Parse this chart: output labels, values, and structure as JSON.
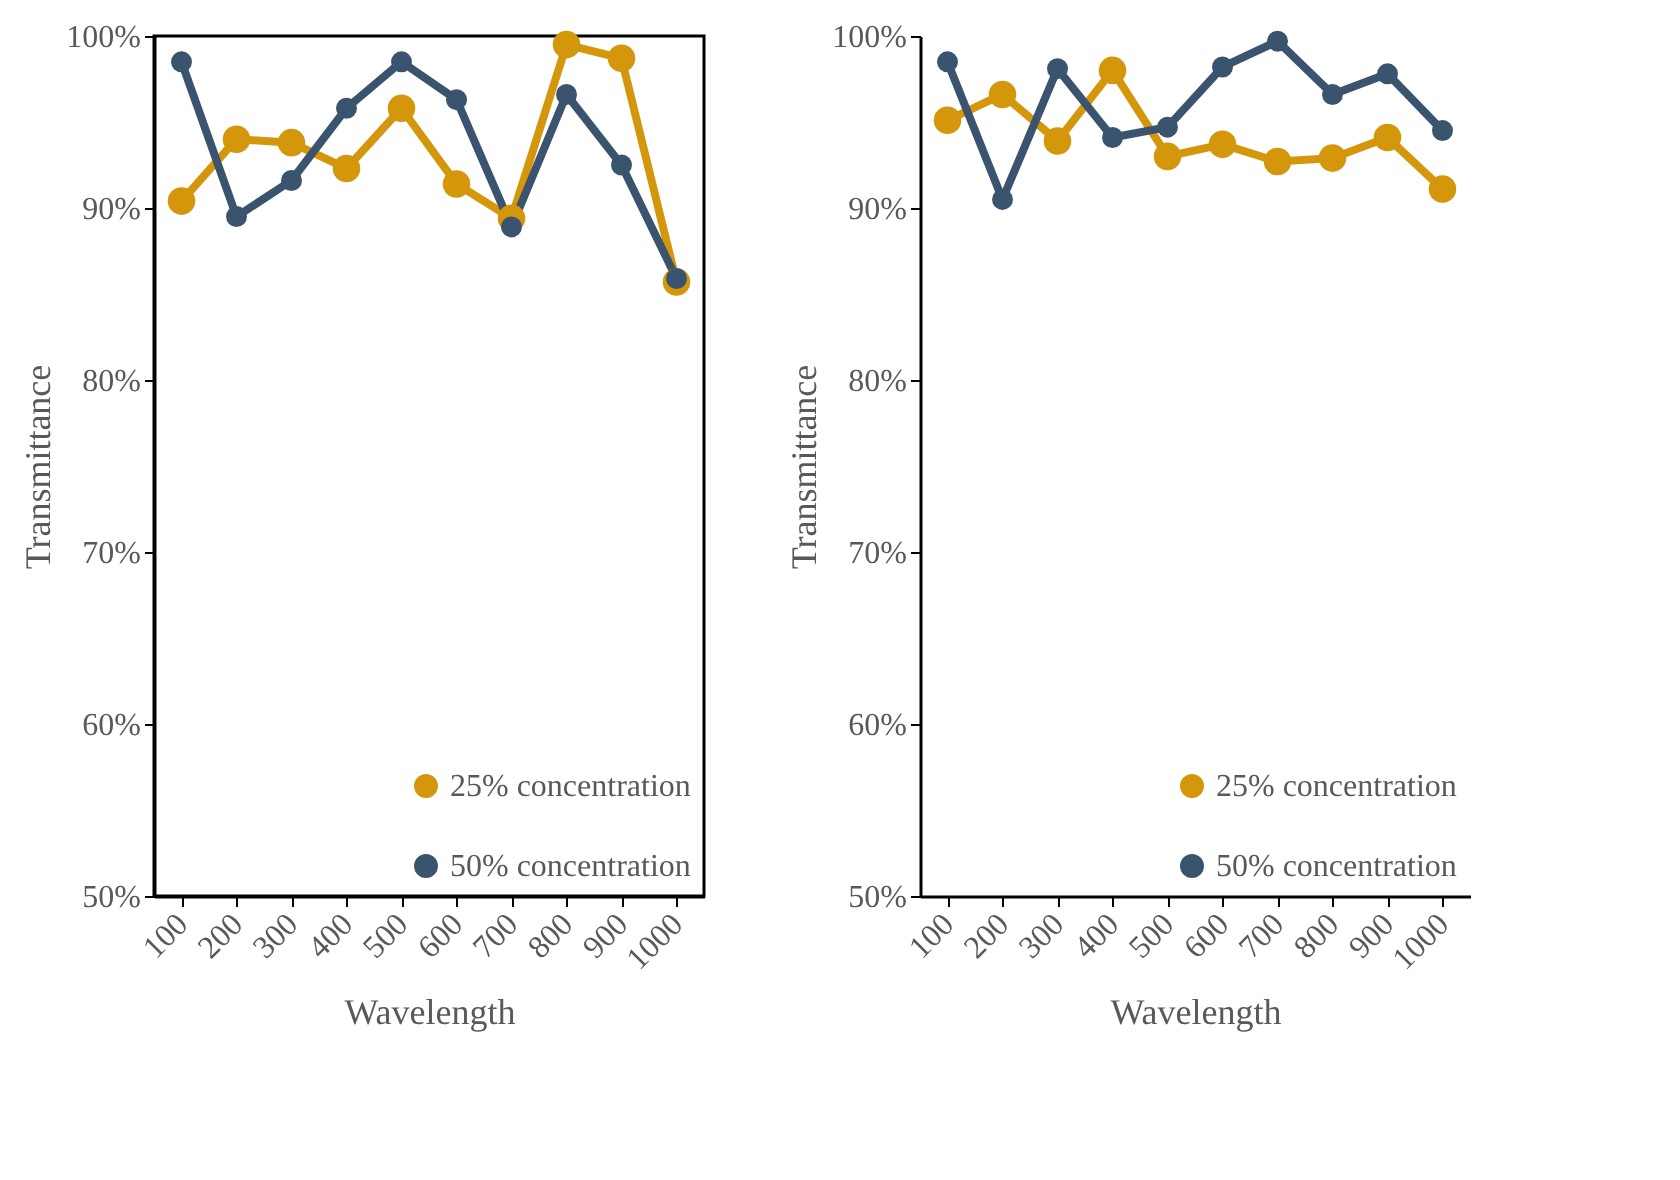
{
  "chart_data": [
    {
      "type": "line",
      "xlabel": "Wavelength",
      "ylabel": "Transmittance",
      "categories": [
        "100",
        "200",
        "300",
        "400",
        "500",
        "600",
        "700",
        "800",
        "900",
        "1000"
      ],
      "series": [
        {
          "name": "25% concentration",
          "color": "#d4960a",
          "values": [
            90.4,
            94.0,
            93.8,
            92.3,
            95.8,
            91.4,
            89.4,
            99.5,
            98.7,
            85.7
          ]
        },
        {
          "name": "50% concentration",
          "color": "#3a5470",
          "values": [
            98.5,
            89.5,
            91.6,
            95.8,
            98.5,
            96.3,
            88.9,
            96.6,
            92.5,
            85.9
          ]
        }
      ],
      "ylim": [
        50,
        100
      ],
      "yticks": [
        {
          "value": 50,
          "label": "50%"
        },
        {
          "value": 60,
          "label": "60%"
        },
        {
          "value": 70,
          "label": "70%"
        },
        {
          "value": 80,
          "label": "80%"
        },
        {
          "value": 90,
          "label": "90%"
        },
        {
          "value": 100,
          "label": "100%"
        }
      ],
      "grid": false,
      "legend": "bottom right",
      "marker": "circle",
      "line_style": "solid"
    },
    {
      "type": "line",
      "xlabel": "Wavelength",
      "ylabel": "Transmittance",
      "categories": [
        "100",
        "200",
        "300",
        "400",
        "500",
        "600",
        "700",
        "800",
        "900",
        "1000"
      ],
      "series": [
        {
          "name": "25% concentration",
          "color": "#d4960a",
          "values": [
            95.1,
            96.6,
            93.9,
            98.0,
            93.0,
            93.7,
            92.7,
            92.9,
            94.1,
            91.1
          ]
        },
        {
          "name": "50% concentration",
          "color": "#3a5470",
          "values": [
            98.5,
            90.5,
            98.1,
            94.1,
            94.7,
            98.2,
            99.7,
            96.6,
            97.8,
            94.5
          ]
        }
      ],
      "ylim": [
        50,
        100
      ],
      "yticks": [
        {
          "value": 50,
          "label": "50%"
        },
        {
          "value": 60,
          "label": "60%"
        },
        {
          "value": 70,
          "label": "70%"
        },
        {
          "value": 80,
          "label": "80%"
        },
        {
          "value": 90,
          "label": "90%"
        },
        {
          "value": 100,
          "label": "100%"
        }
      ],
      "grid": false,
      "legend": "bottom right",
      "marker": "circle",
      "line_style": "solid"
    }
  ]
}
